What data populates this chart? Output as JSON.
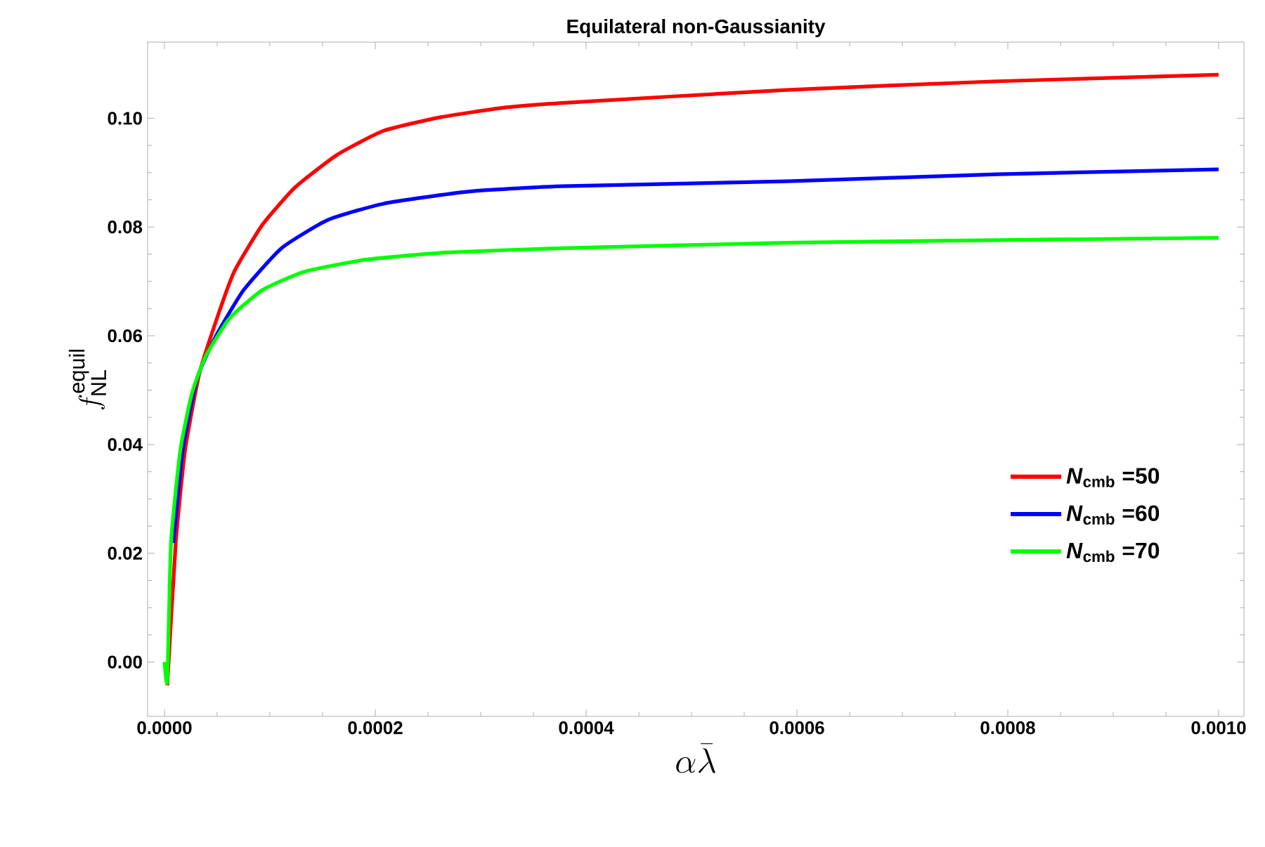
{
  "chart_data": {
    "type": "line",
    "title": "Equilateral non-Gaussianity",
    "xlabel": "\\alpha\\bar{\\lambda}",
    "ylabel": "f^{\\mathrm{equil}}_{\\mathrm{NL}}",
    "xlim": [
      -1.6e-05,
      0.001024
    ],
    "ylim": [
      -0.01,
      0.114
    ],
    "xticks": [
      {
        "value": 0,
        "label": "0.0000"
      },
      {
        "value": 0.0002,
        "label": "0.0002"
      },
      {
        "value": 0.0004,
        "label": "0.0004"
      },
      {
        "value": 0.0006,
        "label": "0.0006"
      },
      {
        "value": 0.0008,
        "label": "0.0008"
      },
      {
        "value": 0.001,
        "label": "0.0010"
      }
    ],
    "yticks": [
      {
        "value": 0,
        "label": "0.00"
      },
      {
        "value": 0.02,
        "label": "0.02"
      },
      {
        "value": 0.04,
        "label": "0.04"
      },
      {
        "value": 0.06,
        "label": "0.06"
      },
      {
        "value": 0.08,
        "label": "0.08"
      },
      {
        "value": 0.1,
        "label": "0.10"
      }
    ],
    "legend": "right",
    "grid": false,
    "marker": "none",
    "line_style": "solid",
    "series": [
      {
        "name": "*N*$_{cmb}$ =50",
        "color": "#ff0000",
        "x": [
          2.7e-06,
          1.07e-05,
          1.96e-05,
          3.29e-05,
          4.84e-05,
          6.62e-05,
          9.29e-05,
          0.000124,
          0.000164,
          0.000208,
          0.000262,
          0.000324,
          0.000377,
          0.00059,
          0.00079,
          0.001
        ],
        "values": [
          -0.0043,
          0.0219,
          0.039,
          0.0529,
          0.0624,
          0.0718,
          0.0804,
          0.0873,
          0.0933,
          0.0977,
          0.1002,
          0.102,
          0.1028,
          0.1052,
          0.1068,
          0.108
        ]
      },
      {
        "name": "*N*$_{cmb}$ =60",
        "color": "#0000ff",
        "x": [
          8.4e-06,
          1.73e-05,
          3.07e-05,
          4.84e-05,
          7.51e-05,
          0.000111,
          0.000155,
          0.000208,
          0.000288,
          0.000377,
          0.00059,
          0.00079,
          0.001
        ],
        "values": [
          0.0219,
          0.039,
          0.052,
          0.0598,
          0.0684,
          0.0761,
          0.0813,
          0.0843,
          0.0865,
          0.0875,
          0.0884,
          0.0897,
          0.0906
        ]
      },
      {
        "name": "*N*$_{cmb}$ =70",
        "color": "#00ff00",
        "x": [
          0.0,
          2.7e-06,
          6.2e-06,
          1.51e-05,
          2.62e-05,
          3.96e-05,
          6.18e-05,
          9.29e-05,
          0.000133,
          0.000191,
          0.000266,
          0.000377,
          0.00059,
          0.00079,
          0.001
        ],
        "values": [
          0.0,
          -0.0035,
          0.0219,
          0.039,
          0.0495,
          0.0564,
          0.0632,
          0.0684,
          0.0718,
          0.074,
          0.0753,
          0.0761,
          0.0771,
          0.0776,
          0.078
        ]
      }
    ]
  }
}
